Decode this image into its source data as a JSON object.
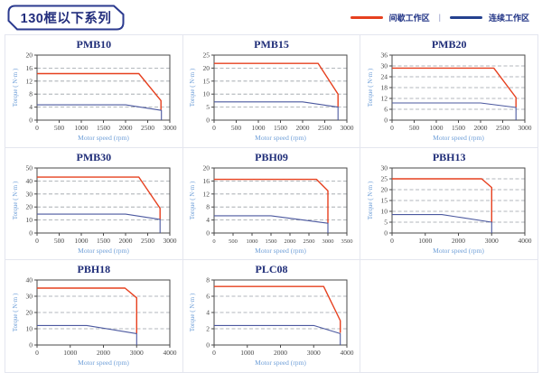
{
  "header": {
    "title": "130框以下系列"
  },
  "legend": {
    "intermittent_label": "间歇工作区",
    "separator": "|",
    "continuous_label": "连续工作区",
    "intermittent_color": "#e6401f",
    "continuous_color": "#24418f"
  },
  "colors": {
    "red_curve": "#e6401f",
    "blue_curve": "#4b589f",
    "navy_text": "#1f2d78",
    "axis_label_blue": "#6f9fd8",
    "tick_text": "#454545",
    "gridline": "#9aa0a6",
    "frame": "#4a4a4a",
    "cell_border": "#e4e6ef"
  },
  "chart_data": [
    {
      "type": "line",
      "title": "PMB10",
      "xlabel": "Motor speed (rpm)",
      "ylabel": "Torque ( N·m )",
      "xlim": [
        0,
        3000
      ],
      "xstep": 500,
      "ylim": [
        0,
        20
      ],
      "ystep": 4,
      "grid": "dashed-horizontal",
      "series": [
        {
          "name": "间歇工作区",
          "color": "#e6401f",
          "points": [
            [
              0,
              14.3
            ],
            [
              2300,
              14.3
            ],
            [
              2800,
              6
            ],
            [
              2800,
              3.2
            ]
          ]
        },
        {
          "name": "连续工作区",
          "color": "#4b589f",
          "points": [
            [
              0,
              4.7
            ],
            [
              2000,
              4.7
            ],
            [
              2810,
              3
            ],
            [
              2810,
              0
            ]
          ]
        }
      ]
    },
    {
      "type": "line",
      "title": "PMB15",
      "xlabel": "Motor speed (rpm)",
      "ylabel": "Torque ( N·m )",
      "xlim": [
        0,
        3000
      ],
      "xstep": 500,
      "ylim": [
        0,
        25
      ],
      "ystep": 5,
      "grid": "dashed-horizontal",
      "series": [
        {
          "name": "间歇工作区",
          "color": "#e6401f",
          "points": [
            [
              0,
              21.8
            ],
            [
              2350,
              21.8
            ],
            [
              2800,
              10
            ],
            [
              2800,
              5
            ]
          ]
        },
        {
          "name": "连续工作区",
          "color": "#4b589f",
          "points": [
            [
              0,
              7
            ],
            [
              2000,
              7
            ],
            [
              2800,
              5
            ],
            [
              2800,
              0
            ]
          ]
        }
      ]
    },
    {
      "type": "line",
      "title": "PMB20",
      "xlabel": "Motor speed (rpm)",
      "ylabel": "Torque ( N·m )",
      "xlim": [
        0,
        3000
      ],
      "xstep": 500,
      "ylim": [
        0,
        36
      ],
      "ystep": 6,
      "grid": "dashed-horizontal",
      "series": [
        {
          "name": "间歇工作区",
          "color": "#e6401f",
          "points": [
            [
              0,
              28.8
            ],
            [
              2300,
              28.8
            ],
            [
              2800,
              12.5
            ],
            [
              2800,
              7
            ]
          ]
        },
        {
          "name": "连续工作区",
          "color": "#4b589f",
          "points": [
            [
              0,
              9.5
            ],
            [
              2000,
              9.5
            ],
            [
              2800,
              7
            ],
            [
              2800,
              0
            ]
          ]
        }
      ]
    },
    {
      "type": "line",
      "title": "PMB30",
      "xlabel": "Motor speed (rpm)",
      "ylabel": "Torque ( N·m )",
      "xlim": [
        0,
        3000
      ],
      "xstep": 500,
      "ylim": [
        0,
        50
      ],
      "ystep": 10,
      "grid": "dashed-horizontal",
      "series": [
        {
          "name": "间歇工作区",
          "color": "#e6401f",
          "points": [
            [
              0,
              43
            ],
            [
              2300,
              43
            ],
            [
              2780,
              19
            ],
            [
              2780,
              10.5
            ]
          ]
        },
        {
          "name": "连续工作区",
          "color": "#4b589f",
          "points": [
            [
              0,
              14.5
            ],
            [
              2000,
              14.5
            ],
            [
              2780,
              10.5
            ],
            [
              2780,
              0
            ]
          ]
        }
      ]
    },
    {
      "type": "line",
      "title": "PBH09",
      "xlabel": "Motor speed (rpm)",
      "ylabel": "Torque ( N·m )",
      "xlim": [
        0,
        3500
      ],
      "xstep": 500,
      "ylim": [
        0,
        20
      ],
      "ystep": 4,
      "grid": "dashed-horizontal",
      "series": [
        {
          "name": "间歇工作区",
          "color": "#e6401f",
          "points": [
            [
              0,
              16.5
            ],
            [
              2700,
              16.5
            ],
            [
              3000,
              13
            ],
            [
              3000,
              3
            ]
          ]
        },
        {
          "name": "连续工作区",
          "color": "#4b589f",
          "points": [
            [
              0,
              5.3
            ],
            [
              1500,
              5.3
            ],
            [
              3000,
              3
            ],
            [
              3000,
              0
            ]
          ]
        }
      ]
    },
    {
      "type": "line",
      "title": "PBH13",
      "xlabel": "Motor speed (rpm)",
      "ylabel": "Torque ( N·m )",
      "xlim": [
        0,
        4000
      ],
      "xstep": 1000,
      "ylim": [
        0,
        30
      ],
      "ystep": 5,
      "grid": "dashed-horizontal",
      "series": [
        {
          "name": "间歇工作区",
          "color": "#e6401f",
          "points": [
            [
              0,
              25
            ],
            [
              2700,
              25
            ],
            [
              3000,
              21
            ],
            [
              3000,
              5
            ]
          ]
        },
        {
          "name": "连续工作区",
          "color": "#4b589f",
          "points": [
            [
              0,
              8.5
            ],
            [
              1500,
              8.5
            ],
            [
              3000,
              5
            ],
            [
              3000,
              0
            ]
          ]
        }
      ]
    },
    {
      "type": "line",
      "title": "PBH18",
      "xlabel": "Motor speed (rpm)",
      "ylabel": "Torque ( N·m )",
      "xlim": [
        0,
        4000
      ],
      "xstep": 1000,
      "ylim": [
        0,
        40
      ],
      "ystep": 10,
      "grid": "dashed-horizontal",
      "series": [
        {
          "name": "间歇工作区",
          "color": "#e6401f",
          "points": [
            [
              0,
              35
            ],
            [
              2650,
              35
            ],
            [
              3000,
              29
            ],
            [
              3000,
              7
            ]
          ]
        },
        {
          "name": "连续工作区",
          "color": "#4b589f",
          "points": [
            [
              0,
              12
            ],
            [
              1500,
              12
            ],
            [
              3000,
              7
            ],
            [
              3000,
              0
            ]
          ]
        }
      ]
    },
    {
      "type": "line",
      "title": "PLC08",
      "xlabel": "Motor speed (rpm)",
      "ylabel": "Torque ( N·m )",
      "xlim": [
        0,
        4000
      ],
      "xstep": 1000,
      "ylim": [
        0,
        8
      ],
      "ystep": 2,
      "grid": "dashed-horizontal",
      "series": [
        {
          "name": "间歇工作区",
          "color": "#e6401f",
          "points": [
            [
              0,
              7.2
            ],
            [
              3300,
              7.2
            ],
            [
              3800,
              3
            ],
            [
              3800,
              1.5
            ]
          ]
        },
        {
          "name": "连续工作区",
          "color": "#4b589f",
          "points": [
            [
              0,
              2.4
            ],
            [
              3000,
              2.4
            ],
            [
              3800,
              1.4
            ],
            [
              3800,
              0
            ]
          ]
        }
      ]
    }
  ]
}
